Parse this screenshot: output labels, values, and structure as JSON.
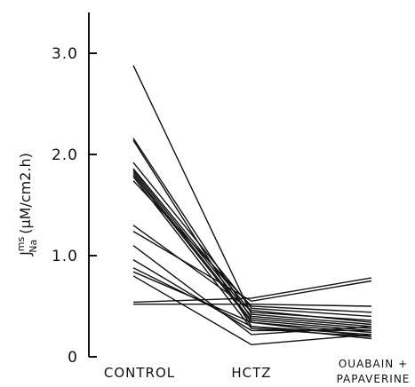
{
  "chart_data": {
    "type": "line",
    "categories": [
      "CONTROL",
      "HCTZ",
      "OUABAIN +\nPAPAVERINE"
    ],
    "category_lines": [
      [
        "CONTROL"
      ],
      [
        "HCTZ"
      ],
      [
        "OUABAIN +",
        "PAPAVERINE"
      ]
    ],
    "ylabel": {
      "main": "J",
      "superscript": "ms",
      "subscript": "Na",
      "units": "(μM/cm2.h)"
    },
    "yticks": [
      "0",
      "1.0",
      "2.0",
      "3.0"
    ],
    "ytick_values": [
      0,
      1.0,
      2.0,
      3.0
    ],
    "ylim": [
      0,
      3.4
    ],
    "grid": false,
    "series": [
      {
        "values": [
          2.88,
          0.42,
          0.32
        ]
      },
      {
        "values": [
          2.16,
          0.38,
          0.28
        ]
      },
      {
        "values": [
          2.14,
          0.3,
          0.22
        ]
      },
      {
        "values": [
          1.92,
          0.48,
          0.4
        ]
      },
      {
        "values": [
          1.86,
          0.44,
          0.36
        ]
      },
      {
        "values": [
          1.84,
          0.4,
          0.3
        ]
      },
      {
        "values": [
          1.82,
          0.36,
          0.26
        ]
      },
      {
        "values": [
          1.8,
          0.34,
          0.24
        ]
      },
      {
        "values": [
          1.78,
          0.28,
          0.2
        ]
      },
      {
        "values": [
          1.74,
          0.5,
          0.44
        ]
      },
      {
        "values": [
          1.3,
          0.46,
          0.34
        ]
      },
      {
        "values": [
          1.24,
          0.55,
          0.75
        ]
      },
      {
        "values": [
          1.1,
          0.22,
          0.3
        ]
      },
      {
        "values": [
          0.96,
          0.26,
          0.26
        ]
      },
      {
        "values": [
          0.88,
          0.3,
          0.18
        ]
      },
      {
        "values": [
          0.84,
          0.34,
          0.2
        ]
      },
      {
        "values": [
          0.54,
          0.58,
          0.78
        ]
      },
      {
        "values": [
          0.52,
          0.52,
          0.5
        ]
      },
      {
        "values": [
          0.8,
          0.12,
          0.22
        ]
      }
    ]
  }
}
